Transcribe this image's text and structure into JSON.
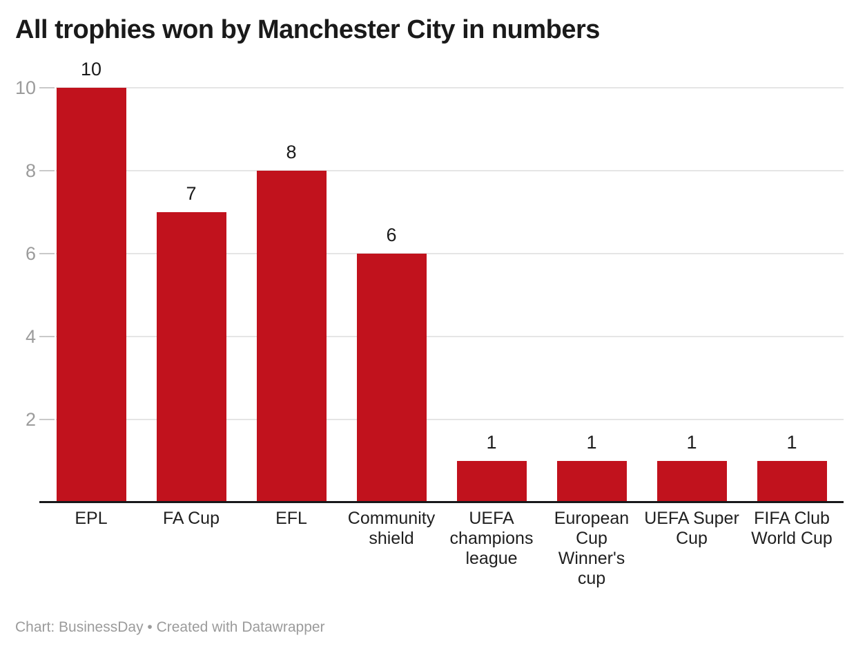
{
  "chart_data": {
    "type": "bar",
    "title": "All trophies won by Manchester City in numbers",
    "categories": [
      "EPL",
      "FA Cup",
      "EFL",
      "Community shield",
      "UEFA champions league",
      "European Cup Winner's cup",
      "UEFA Super Cup",
      "FIFA Club World Cup"
    ],
    "category_labels_wrapped": [
      "EPL",
      "FA Cup",
      "EFL",
      "Community\nshield",
      "UEFA\nchampions\nleague",
      "European\nCup\nWinner's\ncup",
      "UEFA Super\nCup",
      "FIFA Club\nWorld Cup"
    ],
    "values": [
      10,
      7,
      8,
      6,
      1,
      1,
      1,
      1
    ],
    "data_labels": [
      "10",
      "7",
      "8",
      "6",
      "1",
      "1",
      "1",
      "1"
    ],
    "xlabel": "",
    "ylabel": "",
    "ylim": [
      0,
      10
    ],
    "yticks": [
      2,
      4,
      6,
      8,
      10
    ],
    "grid": true,
    "legend": false,
    "bar_color": "#c1121d"
  },
  "footer": {
    "credit": "Chart: BusinessDay • Created with Datawrapper"
  },
  "colors": {
    "bar_red": "#c1121d",
    "title_text": "#1a1a1a",
    "axis_label_gray": "#9b9b9b",
    "gridline": "#e5e5e5",
    "tick": "#c9c9c9",
    "axis_line": "#18181a",
    "category_label_text": "#202020",
    "footer_gray": "#9b9b9b",
    "background": "#ffffff"
  }
}
